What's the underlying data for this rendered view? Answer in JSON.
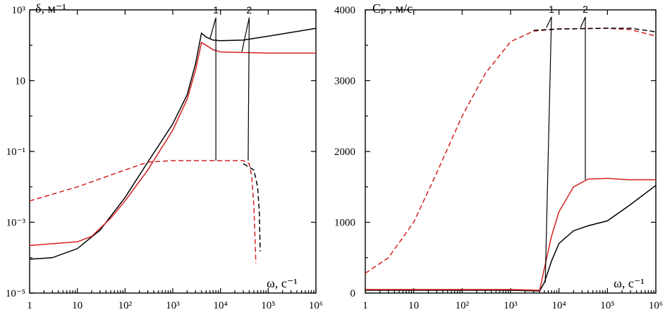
{
  "chart_data": [
    {
      "type": "line",
      "ylabel": "δ, м⁻¹",
      "xlabel": "ω, с⁻¹",
      "xscale": "log",
      "yscale": "log",
      "xlim": [
        1,
        1000000
      ],
      "ylim": [
        1e-05,
        1000
      ],
      "x_ticks": [
        1,
        10,
        100,
        1000,
        10000,
        100000,
        1000000
      ],
      "x_tick_labels": [
        "1",
        "10",
        "10²",
        "10³",
        "10⁴",
        "10⁵",
        "10⁶"
      ],
      "y_ticks": [
        1e-05,
        0.001,
        0.1,
        10,
        1000
      ],
      "y_tick_labels": [
        "10⁻⁵",
        "10⁻³",
        "10⁻¹",
        "10",
        "10³"
      ],
      "series": [
        {
          "color": "#000000",
          "dash": "solid",
          "points": [
            [
              1,
              9e-05
            ],
            [
              3,
              0.0001
            ],
            [
              10,
              0.00018
            ],
            [
              30,
              0.0006
            ],
            [
              100,
              0.005
            ],
            [
              300,
              0.05
            ],
            [
              1000,
              0.6
            ],
            [
              2000,
              4
            ],
            [
              3000,
              30
            ],
            [
              4000,
              220
            ],
            [
              5000,
              170
            ],
            [
              7000,
              140
            ],
            [
              10000,
              135
            ],
            [
              30000,
              140
            ],
            [
              100000,
              180
            ],
            [
              1000000,
              300
            ]
          ]
        },
        {
          "color": "#d42020",
          "dash": "solid",
          "points": [
            [
              1,
              0.00022
            ],
            [
              10,
              0.00028
            ],
            [
              20,
              0.0004
            ],
            [
              50,
              0.0013
            ],
            [
              100,
              0.004
            ],
            [
              300,
              0.03
            ],
            [
              1000,
              0.4
            ],
            [
              2000,
              3
            ],
            [
              3000,
              20
            ],
            [
              4000,
              120
            ],
            [
              5000,
              100
            ],
            [
              7000,
              75
            ],
            [
              10000,
              65
            ],
            [
              100000,
              60
            ],
            [
              1000000,
              60
            ]
          ]
        },
        {
          "color": "#000000",
          "dash": "dashed",
          "points": [
            [
              30000,
              0.045
            ],
            [
              50000,
              0.03
            ],
            [
              60000,
              0.01
            ],
            [
              65000,
              0.002
            ],
            [
              68000,
              0.00015
            ]
          ]
        },
        {
          "color": "#d42020",
          "dash": "dashed",
          "points": [
            [
              1,
              0.004
            ],
            [
              10,
              0.01
            ],
            [
              100,
              0.03
            ],
            [
              300,
              0.05
            ],
            [
              1000,
              0.055
            ],
            [
              10000,
              0.055
            ],
            [
              30000,
              0.055
            ],
            [
              40000,
              0.045
            ],
            [
              45000,
              0.02
            ],
            [
              50000,
              0.003
            ],
            [
              55000,
              7e-05
            ]
          ]
        }
      ],
      "annotations": [
        {
          "label": "1",
          "top": [
            8000,
            600
          ],
          "base": [
            8000,
            0.055
          ],
          "target": [
            6000,
            150
          ]
        },
        {
          "label": "2",
          "top": [
            40000,
            600
          ],
          "base": [
            38000,
            0.055
          ],
          "target": [
            28000,
            65
          ]
        }
      ]
    },
    {
      "type": "line",
      "ylabel": "Cₚ , м/с",
      "xlabel": "ω, с⁻¹",
      "xscale": "log",
      "yscale": "linear",
      "xlim": [
        1,
        1000000
      ],
      "ylim": [
        0,
        4000
      ],
      "x_ticks": [
        1,
        10,
        100,
        1000,
        10000,
        100000,
        1000000
      ],
      "x_tick_labels": [
        "1",
        "10",
        "10²",
        "10³",
        "10⁴",
        "10⁵",
        "10⁶"
      ],
      "y_ticks": [
        0,
        1000,
        2000,
        3000,
        4000
      ],
      "y_tick_labels": [
        "0",
        "1000",
        "2000",
        "3000",
        "4000"
      ],
      "series": [
        {
          "color": "#d42020",
          "dash": "dashed",
          "points": [
            [
              1,
              280
            ],
            [
              3,
              500
            ],
            [
              10,
              1000
            ],
            [
              30,
              1700
            ],
            [
              100,
              2500
            ],
            [
              300,
              3100
            ],
            [
              1000,
              3550
            ],
            [
              3000,
              3700
            ],
            [
              10000,
              3730
            ],
            [
              100000,
              3740
            ],
            [
              300000,
              3720
            ],
            [
              1000000,
              3630
            ]
          ]
        },
        {
          "color": "#000000",
          "dash": "dashed",
          "points": [
            [
              3000,
              3710
            ],
            [
              10000,
              3730
            ],
            [
              100000,
              3740
            ],
            [
              300000,
              3740
            ],
            [
              1000000,
              3690
            ]
          ]
        },
        {
          "color": "#000000",
          "dash": "solid",
          "points": [
            [
              1,
              40
            ],
            [
              100,
              40
            ],
            [
              1000,
              40
            ],
            [
              4000,
              30
            ],
            [
              5000,
              150
            ],
            [
              7000,
              450
            ],
            [
              10000,
              700
            ],
            [
              20000,
              880
            ],
            [
              40000,
              950
            ],
            [
              100000,
              1020
            ],
            [
              300000,
              1250
            ],
            [
              1000000,
              1520
            ]
          ]
        },
        {
          "color": "#d42020",
          "dash": "solid",
          "points": [
            [
              1,
              50
            ],
            [
              100,
              50
            ],
            [
              1000,
              50
            ],
            [
              4000,
              40
            ],
            [
              5000,
              350
            ],
            [
              7000,
              800
            ],
            [
              10000,
              1150
            ],
            [
              20000,
              1500
            ],
            [
              40000,
              1610
            ],
            [
              100000,
              1620
            ],
            [
              300000,
              1600
            ],
            [
              1000000,
              1600
            ]
          ]
        }
      ],
      "annotations": [
        {
          "label": "1",
          "top": [
            7000,
            3900
          ],
          "base": [
            5200,
            150
          ],
          "target": [
            5500,
            3750
          ]
        },
        {
          "label": "2",
          "top": [
            35000,
            3900
          ],
          "base": [
            35000,
            1600
          ],
          "target": [
            28000,
            3750
          ]
        }
      ]
    }
  ]
}
